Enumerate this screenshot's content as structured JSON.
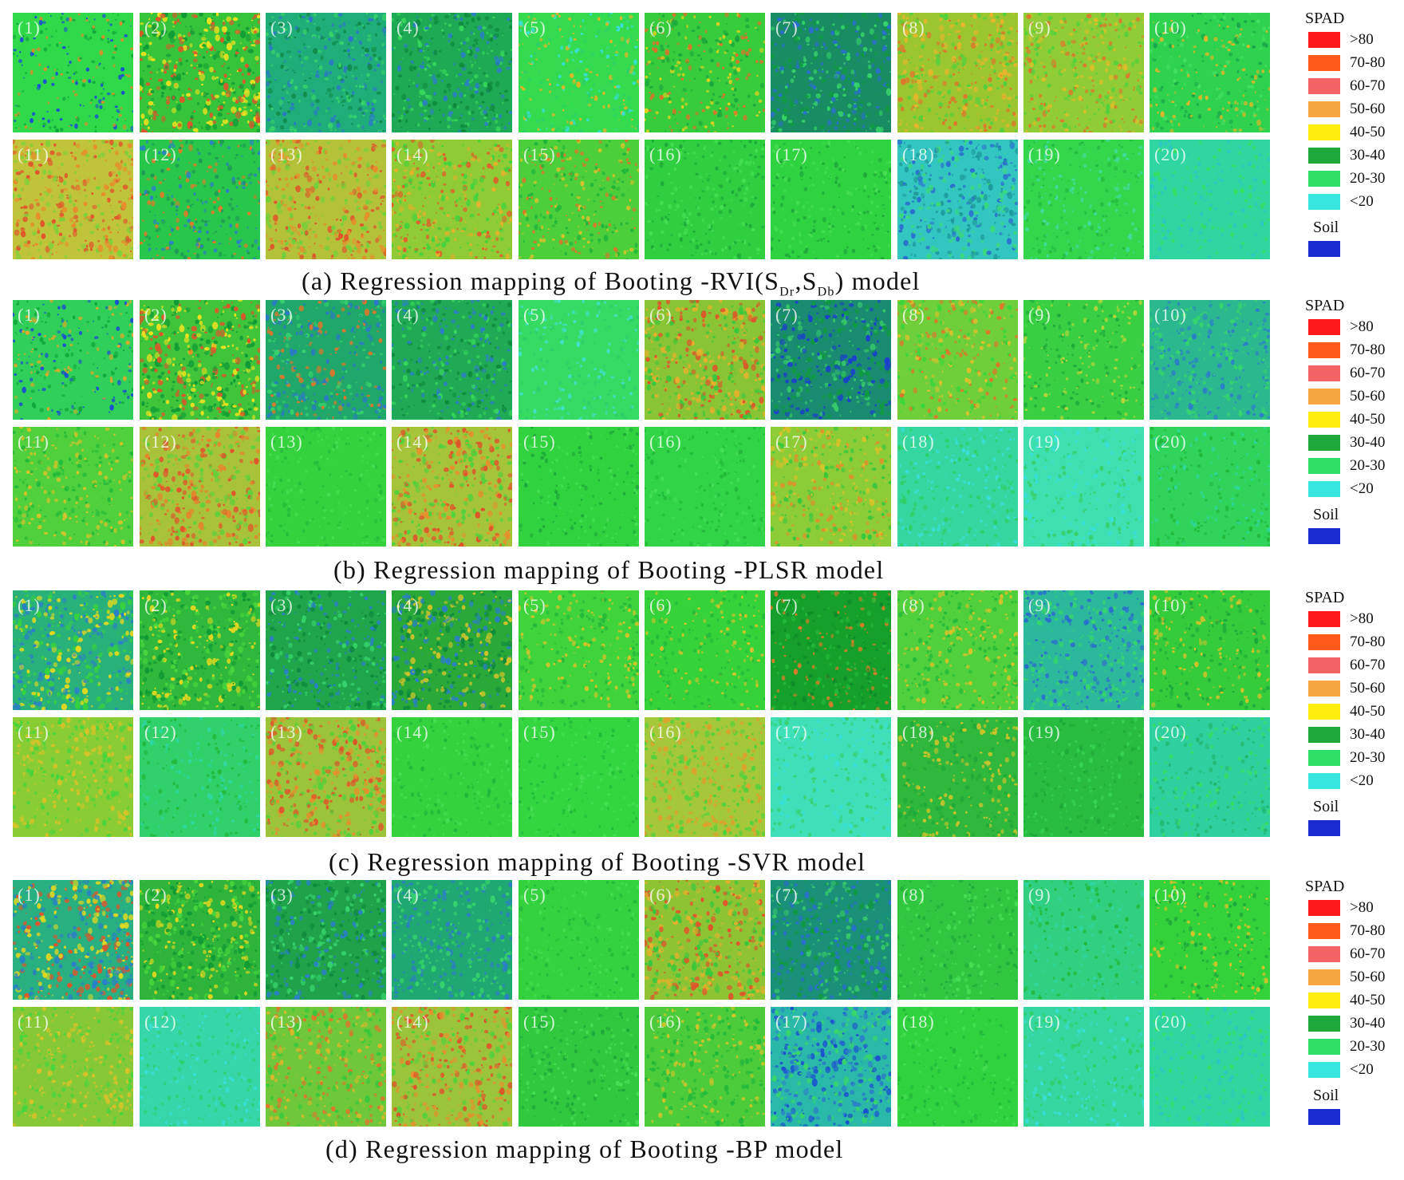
{
  "panels": [
    {
      "caption_prefix": "(a)",
      "caption_text": "Regression mapping of Booting -RVI(S",
      "caption_sub1": "Dr",
      "caption_mid": ",S",
      "caption_sub2": "Db",
      "caption_suffix": ") model",
      "tiles": [
        {
          "label": "(1)",
          "base": "#2fd94a",
          "spots": [
            "#1a4fd0",
            "#e38a2a",
            "#11a73a"
          ],
          "density": 0.18
        },
        {
          "label": "(2)",
          "base": "#36c43a",
          "spots": [
            "#f0e21e",
            "#e0542a",
            "#0f9a35"
          ],
          "density": 0.55
        },
        {
          "label": "(3)",
          "base": "#1fae7a",
          "spots": [
            "#2a79c8",
            "#36d36b",
            "#0f8a4a"
          ],
          "density": 0.4
        },
        {
          "label": "(4)",
          "base": "#1ea954",
          "spots": [
            "#2b80c5",
            "#36d65b",
            "#0d8a3d"
          ],
          "density": 0.4
        },
        {
          "label": "(5)",
          "base": "#34db4f",
          "spots": [
            "#38dfd9",
            "#2ad06a",
            "#e0b528"
          ],
          "density": 0.25
        },
        {
          "label": "(6)",
          "base": "#36cc3c",
          "spots": [
            "#e4d11f",
            "#e0712a",
            "#1aa63b"
          ],
          "density": 0.3
        },
        {
          "label": "(7)",
          "base": "#1a8c64",
          "spots": [
            "#2a6fcf",
            "#0f9a40",
            "#36d36b"
          ],
          "density": 0.4
        },
        {
          "label": "(8)",
          "base": "#9cc630",
          "spots": [
            "#e8b52c",
            "#4fd23c",
            "#e0752a"
          ],
          "density": 0.45
        },
        {
          "label": "(9)",
          "base": "#8fcc35",
          "spots": [
            "#d9bf2a",
            "#4fd23c",
            "#e0752a"
          ],
          "density": 0.4
        },
        {
          "label": "(10)",
          "base": "#2ed24e",
          "spots": [
            "#1aa64a",
            "#46e062",
            "#e0b528"
          ],
          "density": 0.25
        },
        {
          "label": "(11)",
          "base": "#c0c43a",
          "spots": [
            "#e68f2c",
            "#7bd23a",
            "#e0542a"
          ],
          "density": 0.45
        },
        {
          "label": "(12)",
          "base": "#28c64a",
          "spots": [
            "#1e9a55",
            "#e07a2a",
            "#2a80c8"
          ],
          "density": 0.3
        },
        {
          "label": "(13)",
          "base": "#b4c23a",
          "spots": [
            "#e68f2c",
            "#6ed23a",
            "#e0542a"
          ],
          "density": 0.45
        },
        {
          "label": "(14)",
          "base": "#8ecb34",
          "spots": [
            "#e6b02c",
            "#3fd43c",
            "#e0602a"
          ],
          "density": 0.45
        },
        {
          "label": "(15)",
          "base": "#4ccf3a",
          "spots": [
            "#d8c22a",
            "#20b43a",
            "#e0752a"
          ],
          "density": 0.3
        },
        {
          "label": "(16)",
          "base": "#2fcf3f",
          "spots": [
            "#1ea93a",
            "#46df52"
          ],
          "density": 0.2
        },
        {
          "label": "(17)",
          "base": "#2fd23f",
          "spots": [
            "#1ea93a",
            "#46df52"
          ],
          "density": 0.2
        },
        {
          "label": "(18)",
          "base": "#33c6c0",
          "spots": [
            "#2a6fcf",
            "#3bd97a",
            "#1e9a9a"
          ],
          "density": 0.45
        },
        {
          "label": "(19)",
          "base": "#34d64c",
          "spots": [
            "#40dca0",
            "#24b840"
          ],
          "density": 0.2
        },
        {
          "label": "(20)",
          "base": "#2fd6a0",
          "spots": [
            "#36df60",
            "#2cc6c6"
          ],
          "density": 0.2
        }
      ]
    },
    {
      "caption_prefix": "(b)",
      "caption_text": "Regression mapping of Booting -PLSR model",
      "tiles": [
        {
          "label": "(1)",
          "base": "#2fcf5a",
          "spots": [
            "#1a4fd0",
            "#e0a82a",
            "#11a73a"
          ],
          "density": 0.25
        },
        {
          "label": "(2)",
          "base": "#3fc43a",
          "spots": [
            "#f0e21e",
            "#e0542a",
            "#0f9a35"
          ],
          "density": 0.55
        },
        {
          "label": "(3)",
          "base": "#1fa86a",
          "spots": [
            "#2a79c8",
            "#36d36b",
            "#e0752a"
          ],
          "density": 0.4
        },
        {
          "label": "(4)",
          "base": "#20aa55",
          "spots": [
            "#2b80c5",
            "#36d65b",
            "#0d8a3d"
          ],
          "density": 0.4
        },
        {
          "label": "(5)",
          "base": "#36db63",
          "spots": [
            "#3fe0c8",
            "#2ad06a"
          ],
          "density": 0.2
        },
        {
          "label": "(6)",
          "base": "#88c434",
          "spots": [
            "#e6b02c",
            "#e0542a",
            "#36c83c"
          ],
          "density": 0.5
        },
        {
          "label": "(7)",
          "base": "#1a8a70",
          "spots": [
            "#1a3fcf",
            "#0f9a40",
            "#36c86b"
          ],
          "density": 0.5
        },
        {
          "label": "(8)",
          "base": "#6fcf3a",
          "spots": [
            "#e0c02c",
            "#36d63c",
            "#e0752a"
          ],
          "density": 0.35
        },
        {
          "label": "(9)",
          "base": "#38d042",
          "spots": [
            "#1ea93a",
            "#bcd43a"
          ],
          "density": 0.2
        },
        {
          "label": "(10)",
          "base": "#2cb88e",
          "spots": [
            "#2a80c8",
            "#36d66b"
          ],
          "density": 0.35
        },
        {
          "label": "(11)",
          "base": "#4fd03c",
          "spots": [
            "#d8c22a",
            "#22b83a"
          ],
          "density": 0.3
        },
        {
          "label": "(12)",
          "base": "#a8c23a",
          "spots": [
            "#e6842c",
            "#5ed23a",
            "#e0542a"
          ],
          "density": 0.5
        },
        {
          "label": "(13)",
          "base": "#34d23c",
          "spots": [
            "#24bd3a",
            "#46df52"
          ],
          "density": 0.15
        },
        {
          "label": "(14)",
          "base": "#a6c43a",
          "spots": [
            "#e6902c",
            "#4fd23a",
            "#e0542a"
          ],
          "density": 0.5
        },
        {
          "label": "(15)",
          "base": "#30d23e",
          "spots": [
            "#1ea93a",
            "#46df52"
          ],
          "density": 0.15
        },
        {
          "label": "(16)",
          "base": "#30d446",
          "spots": [
            "#22b83a",
            "#46df5a"
          ],
          "density": 0.15
        },
        {
          "label": "(17)",
          "base": "#8ccc36",
          "spots": [
            "#d8c22a",
            "#36c83c",
            "#e0902a"
          ],
          "density": 0.4
        },
        {
          "label": "(18)",
          "base": "#36d6a0",
          "spots": [
            "#38dfd9",
            "#2ed064"
          ],
          "density": 0.25
        },
        {
          "label": "(19)",
          "base": "#3ee0b0",
          "spots": [
            "#38dfd9",
            "#36d06a"
          ],
          "density": 0.25
        },
        {
          "label": "(20)",
          "base": "#30d45a",
          "spots": [
            "#2fd6a0",
            "#22b83a"
          ],
          "density": 0.2
        }
      ]
    },
    {
      "caption_prefix": "(c)",
      "caption_text": "Regression mapping of Booting -SVR model",
      "tiles": [
        {
          "label": "(1)",
          "base": "#28b27a",
          "spots": [
            "#e6d81e",
            "#2a80c8",
            "#36d33c"
          ],
          "density": 0.55
        },
        {
          "label": "(2)",
          "base": "#30b83c",
          "spots": [
            "#e6d81e",
            "#0f9a35",
            "#46d63c"
          ],
          "density": 0.5
        },
        {
          "label": "(3)",
          "base": "#1fa64a",
          "spots": [
            "#2a80c8",
            "#36d36b",
            "#0d8a3d"
          ],
          "density": 0.4
        },
        {
          "label": "(4)",
          "base": "#2aa838",
          "spots": [
            "#d0c42a",
            "#2b80c5",
            "#0d8a3d"
          ],
          "density": 0.5
        },
        {
          "label": "(5)",
          "base": "#3fd43c",
          "spots": [
            "#d8c22a",
            "#22b83a"
          ],
          "density": 0.25
        },
        {
          "label": "(6)",
          "base": "#36d23a",
          "spots": [
            "#22b83a",
            "#d8c22a"
          ],
          "density": 0.2
        },
        {
          "label": "(7)",
          "base": "#14a02a",
          "spots": [
            "#0d8a2a",
            "#22b83a",
            "#e07a2a"
          ],
          "density": 0.3
        },
        {
          "label": "(8)",
          "base": "#4fd03c",
          "spots": [
            "#d8c22a",
            "#22b83a"
          ],
          "density": 0.3
        },
        {
          "label": "(9)",
          "base": "#2cb89a",
          "spots": [
            "#2a6fcf",
            "#36d66b"
          ],
          "density": 0.4
        },
        {
          "label": "(10)",
          "base": "#34cc3a",
          "spots": [
            "#1ea93a",
            "#d8c22a"
          ],
          "density": 0.25
        },
        {
          "label": "(11)",
          "base": "#8acc34",
          "spots": [
            "#d8c22a",
            "#46d63c"
          ],
          "density": 0.35
        },
        {
          "label": "(12)",
          "base": "#30d06a",
          "spots": [
            "#2fd6a0",
            "#22b83a"
          ],
          "density": 0.2
        },
        {
          "label": "(13)",
          "base": "#9cc43a",
          "spots": [
            "#e6902c",
            "#4fd23a",
            "#e0542a"
          ],
          "density": 0.5
        },
        {
          "label": "(14)",
          "base": "#34d23c",
          "spots": [
            "#22b83a",
            "#46df52"
          ],
          "density": 0.15
        },
        {
          "label": "(15)",
          "base": "#34d640",
          "spots": [
            "#22b83a",
            "#46df52"
          ],
          "density": 0.15
        },
        {
          "label": "(16)",
          "base": "#a4c83a",
          "spots": [
            "#e0a02c",
            "#4fd23a"
          ],
          "density": 0.45
        },
        {
          "label": "(17)",
          "base": "#3fe0b8",
          "spots": [
            "#38dfd9",
            "#36d070"
          ],
          "density": 0.25
        },
        {
          "label": "(18)",
          "base": "#30b83c",
          "spots": [
            "#1ea93a",
            "#d0c42a"
          ],
          "density": 0.3
        },
        {
          "label": "(19)",
          "base": "#28bc40",
          "spots": [
            "#1ea93a",
            "#36d352"
          ],
          "density": 0.2
        },
        {
          "label": "(20)",
          "base": "#2fd0a0",
          "spots": [
            "#22b870",
            "#36df60"
          ],
          "density": 0.25
        }
      ]
    },
    {
      "caption_prefix": "(d)",
      "caption_text": "Regression mapping of Booting -BP model",
      "tiles": [
        {
          "label": "(1)",
          "base": "#28b080",
          "spots": [
            "#e6d81e",
            "#2a80c8",
            "#e0542a"
          ],
          "density": 0.55
        },
        {
          "label": "(2)",
          "base": "#2eb43a",
          "spots": [
            "#e6d81e",
            "#0f9a35",
            "#46d63c"
          ],
          "density": 0.5
        },
        {
          "label": "(3)",
          "base": "#1fa24a",
          "spots": [
            "#2a80c8",
            "#36d36b",
            "#0d8a3d"
          ],
          "density": 0.45
        },
        {
          "label": "(4)",
          "base": "#20a872",
          "spots": [
            "#2b80c5",
            "#36d36b"
          ],
          "density": 0.4
        },
        {
          "label": "(5)",
          "base": "#34d23e",
          "spots": [
            "#22b83a",
            "#46df52"
          ],
          "density": 0.15
        },
        {
          "label": "(6)",
          "base": "#8ec434",
          "spots": [
            "#e6b02c",
            "#e0542a",
            "#36c83c"
          ],
          "density": 0.5
        },
        {
          "label": "(7)",
          "base": "#1a9078",
          "spots": [
            "#2a6fcf",
            "#0f9a40",
            "#36c86b"
          ],
          "density": 0.45
        },
        {
          "label": "(8)",
          "base": "#30c640",
          "spots": [
            "#1ea93a",
            "#46df52"
          ],
          "density": 0.2
        },
        {
          "label": "(9)",
          "base": "#30d080",
          "spots": [
            "#2fd6a0",
            "#22b83a"
          ],
          "density": 0.2
        },
        {
          "label": "(10)",
          "base": "#34d23a",
          "spots": [
            "#1ea93a",
            "#d8c22a"
          ],
          "density": 0.2
        },
        {
          "label": "(11)",
          "base": "#86c836",
          "spots": [
            "#d8c22a",
            "#46d63c"
          ],
          "density": 0.35
        },
        {
          "label": "(12)",
          "base": "#36d6a8",
          "spots": [
            "#38dfd9",
            "#2ed070"
          ],
          "density": 0.2
        },
        {
          "label": "(13)",
          "base": "#6ec83a",
          "spots": [
            "#d8b82a",
            "#36c83c",
            "#e0752a"
          ],
          "density": 0.4
        },
        {
          "label": "(14)",
          "base": "#9cc43a",
          "spots": [
            "#e6902c",
            "#4fd23a",
            "#e0542a"
          ],
          "density": 0.5
        },
        {
          "label": "(15)",
          "base": "#30c83c",
          "spots": [
            "#1ea93a",
            "#46df52"
          ],
          "density": 0.2
        },
        {
          "label": "(16)",
          "base": "#4ccc3a",
          "spots": [
            "#d0c42a",
            "#22b83a"
          ],
          "density": 0.3
        },
        {
          "label": "(17)",
          "base": "#2ab8a8",
          "spots": [
            "#1a4fd0",
            "#36d66b",
            "#2a80c8"
          ],
          "density": 0.5
        },
        {
          "label": "(18)",
          "base": "#30d23e",
          "spots": [
            "#22b83a",
            "#46df52"
          ],
          "density": 0.15
        },
        {
          "label": "(19)",
          "base": "#36d6a0",
          "spots": [
            "#38dfd9",
            "#2ed064"
          ],
          "density": 0.2
        },
        {
          "label": "(20)",
          "base": "#2fd6a0",
          "spots": [
            "#36df60",
            "#2cc6c6"
          ],
          "density": 0.2
        }
      ]
    }
  ],
  "legend": {
    "title": "SPAD",
    "items": [
      {
        "label": ">80",
        "color": "#ff1a1a"
      },
      {
        "label": "70-80",
        "color": "#ff5a1a"
      },
      {
        "label": "60-70",
        "color": "#f26464"
      },
      {
        "label": "50-60",
        "color": "#f5a640"
      },
      {
        "label": "40-50",
        "color": "#ffee10"
      },
      {
        "label": "30-40",
        "color": "#1ea83a"
      },
      {
        "label": "20-30",
        "color": "#2ee066"
      },
      {
        "label": "<20",
        "color": "#38e6e0"
      }
    ],
    "soil_label": "Soil",
    "soil_color": "#1a2ccf"
  }
}
